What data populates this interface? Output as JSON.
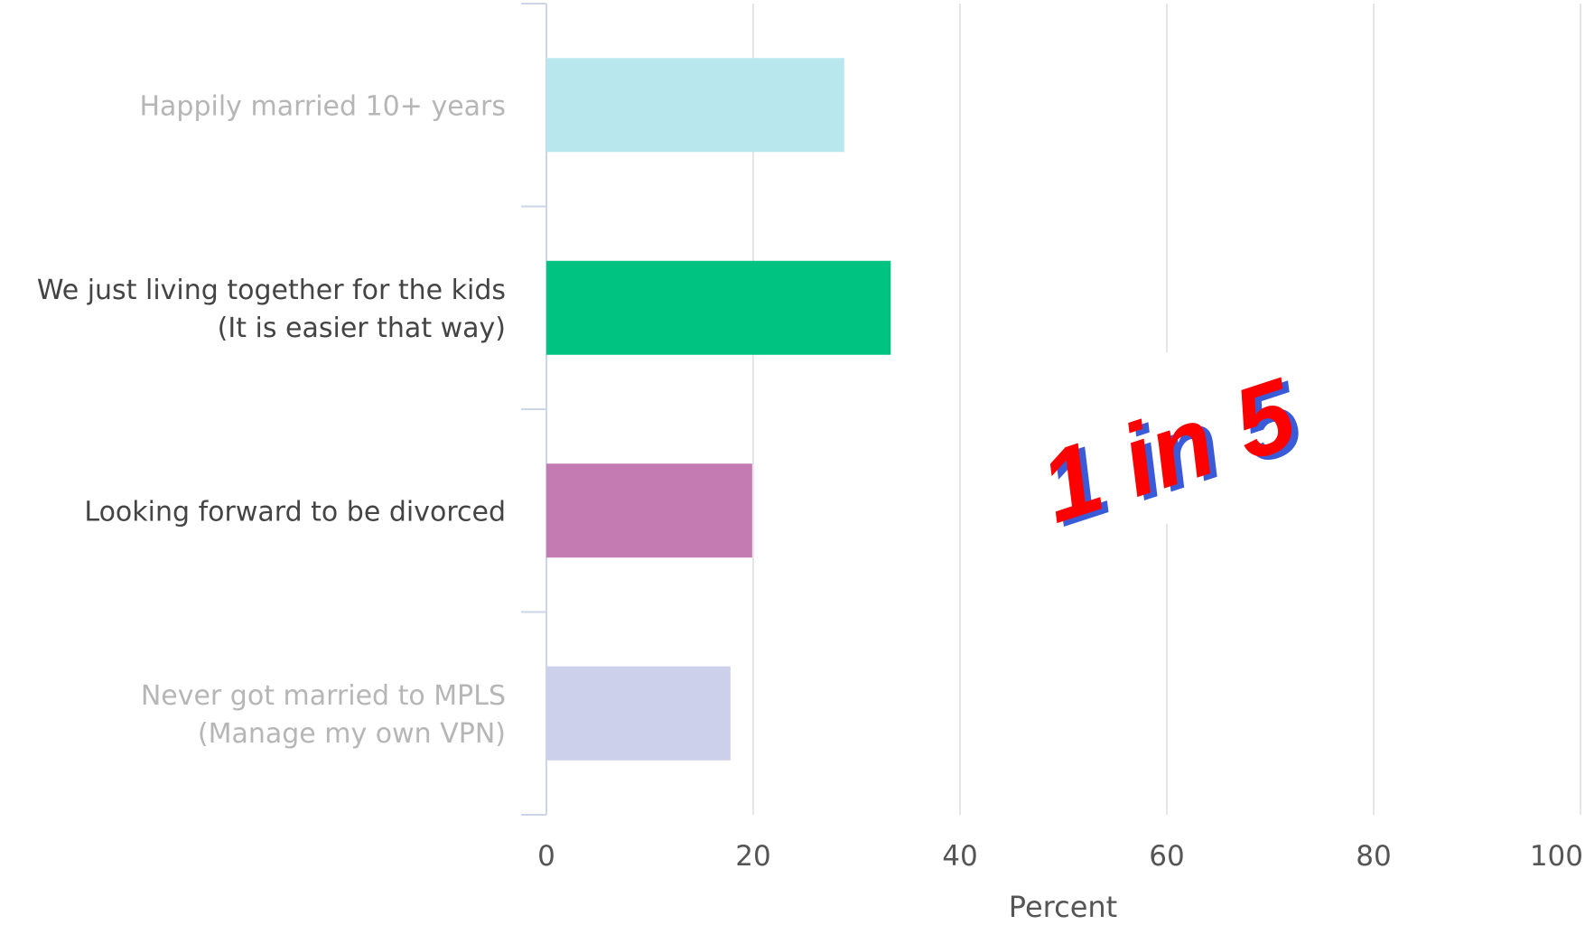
{
  "chart_data": {
    "type": "bar",
    "orientation": "horizontal",
    "categories": [
      [
        "Happily married 10+ years"
      ],
      [
        "We just living together for the kids",
        "(It is easier that way)"
      ],
      [
        "Looking forward to be divorced"
      ],
      [
        "Never got married to MPLS",
        "(Manage my own VPN)"
      ]
    ],
    "values": [
      28.8,
      33.3,
      19.9,
      17.8
    ],
    "colors": [
      "#b8e7ee",
      "#00c281",
      "#c47bb2",
      "#cdd0ea"
    ],
    "label_colors": [
      "#b6b6b6",
      "#444444",
      "#444444",
      "#b6b6b6"
    ],
    "title": "",
    "xlabel": "Percent",
    "ylabel": "",
    "xlim": [
      0,
      100
    ],
    "xticks": [
      "0",
      "20",
      "40",
      "60",
      "80",
      "100"
    ],
    "grid": true,
    "annotation": {
      "text": "1 in 5",
      "color": "#ff0000",
      "shadow_color": "#3a5bd8"
    }
  }
}
